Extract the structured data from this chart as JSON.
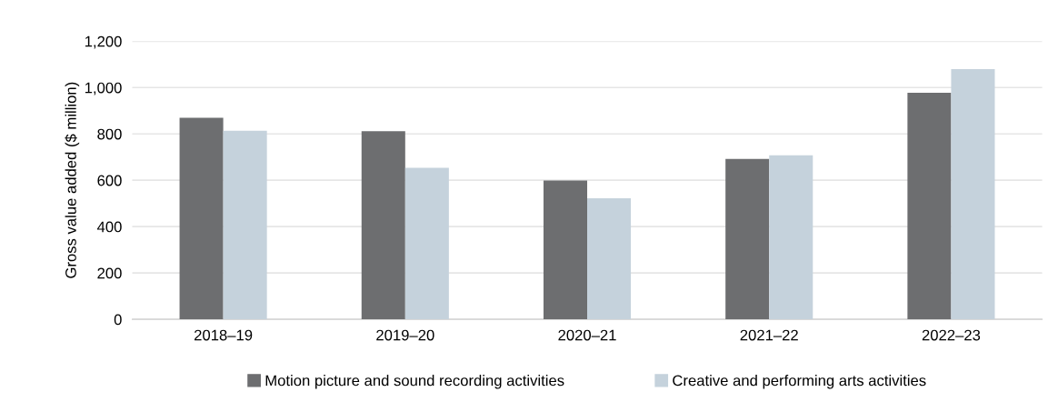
{
  "chart_data": {
    "type": "bar",
    "ylabel": "Gross value added ($ million)",
    "categories": [
      "2018–19",
      "2019–20",
      "2020–21",
      "2021–22",
      "2022–23"
    ],
    "series": [
      {
        "name": "Motion picture and sound recording activities",
        "color": "#6d6e70",
        "values": [
          870,
          812,
          599,
          692,
          977
        ]
      },
      {
        "name": "Creative and performing arts activities",
        "color": "#c5d2dc",
        "values": [
          814,
          654,
          522,
          708,
          1080
        ]
      }
    ],
    "ylim": [
      0,
      1200
    ],
    "yticks": [
      0,
      200,
      400,
      600,
      800,
      {
        "value": 1000,
        "label": "1,000"
      },
      {
        "value": 1200,
        "label": "1,200"
      }
    ],
    "grid": "y",
    "legend": "bottom"
  }
}
